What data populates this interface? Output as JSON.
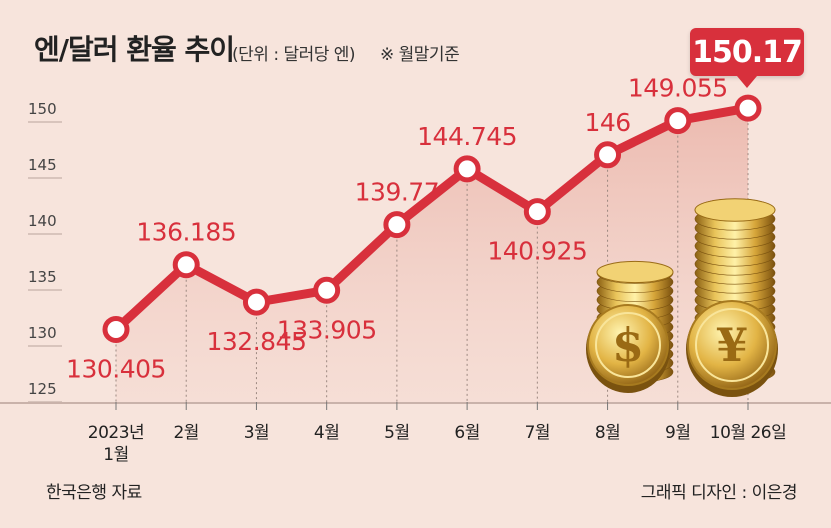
{
  "header": {
    "title": "엔/달러 환율 추이",
    "unit": "(단위 : 달러당 엔)",
    "note": "※ 월말기준"
  },
  "footer": {
    "source": "한국은행 자료",
    "credit": "그래픽 디자인 : 이은경"
  },
  "callout": {
    "value": "150.17"
  },
  "colors": {
    "background": "#f7e4dc",
    "line": "#d8303c",
    "label": "#d8303c",
    "area": "#efc5bb"
  },
  "icons": [
    "dollar-coin-stack-icon",
    "yen-coin-stack-icon"
  ],
  "chart_data": {
    "type": "line",
    "title": "엔/달러 환율 추이",
    "ylabel": "달러당 엔",
    "xlabel": "",
    "ylim": [
      125,
      150
    ],
    "yticks": [
      125,
      130,
      135,
      140,
      145,
      150
    ],
    "categories": [
      [
        "2023년",
        "1월"
      ],
      [
        "2월"
      ],
      [
        "3월"
      ],
      [
        "4월"
      ],
      [
        "5월"
      ],
      [
        "6월"
      ],
      [
        "7월"
      ],
      [
        "8월"
      ],
      [
        "9월"
      ],
      [
        "10월 26일"
      ]
    ],
    "values": [
      130.405,
      136.185,
      132.845,
      133.905,
      139.77,
      144.745,
      140.925,
      146,
      149.055,
      150.17
    ],
    "data_labels": [
      "130.405",
      "136.185",
      "132.845",
      "133.905",
      "139.77",
      "144.745",
      "140.925",
      "146",
      "149.055",
      "150.17"
    ],
    "label_positions": [
      "below",
      "above",
      "below",
      "below",
      "above",
      "above",
      "below",
      "above",
      "above",
      "callout"
    ]
  }
}
